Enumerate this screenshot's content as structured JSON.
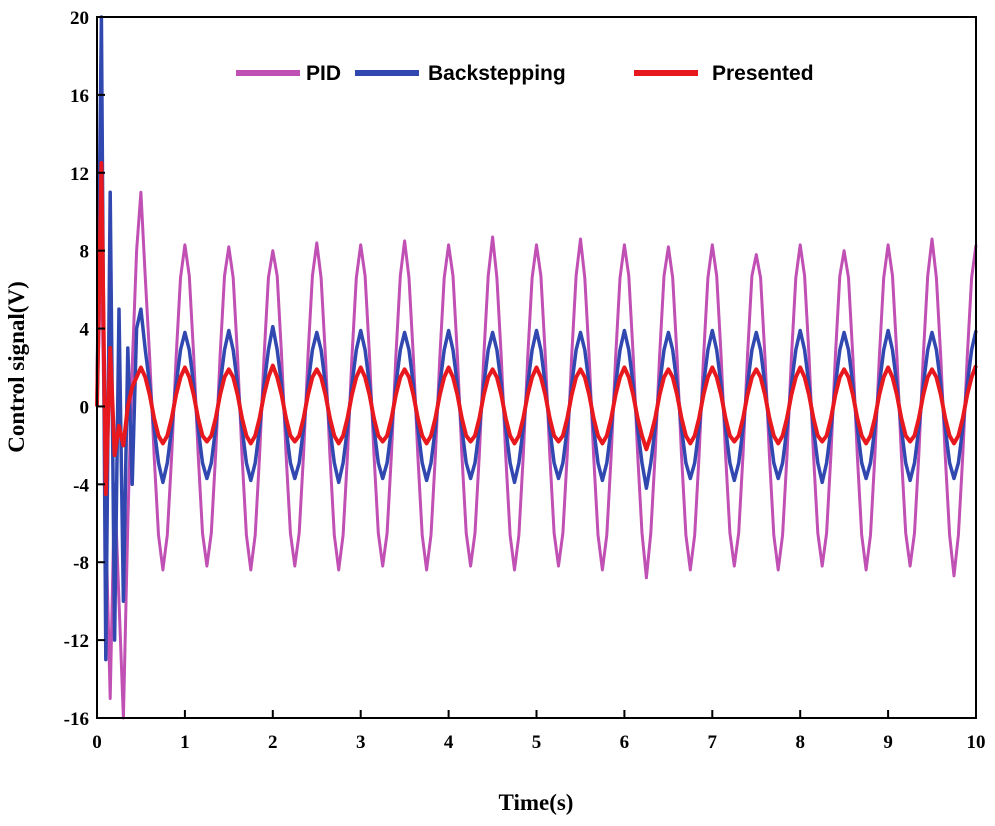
{
  "chart_data": {
    "type": "line",
    "xlabel": "Time(s)",
    "ylabel": "Control signal(V)",
    "xlim": [
      0,
      10
    ],
    "ylim": [
      -16,
      20
    ],
    "xticks": [
      "0",
      "1",
      "2",
      "3",
      "4",
      "5",
      "6",
      "7",
      "8",
      "9",
      "10"
    ],
    "yticks": [
      "-16",
      "-12",
      "-8",
      "-4",
      "0",
      "4",
      "8",
      "12",
      "16",
      "20"
    ],
    "grid": false,
    "legend_position": "top",
    "x": {
      "start": 0,
      "end": 10,
      "step": 0.05
    },
    "series": [
      {
        "name": "PID",
        "color": "#c050b4",
        "values": [
          0,
          8,
          -6,
          -15,
          -4,
          -10,
          -16,
          -6,
          2,
          8,
          11,
          6.6,
          2.5,
          -2.5,
          -6.6,
          -8.4,
          -6.6,
          -2.5,
          2.5,
          6.6,
          8.3,
          6.7,
          2.6,
          -2.4,
          -6.5,
          -8.2,
          -6.5,
          -2.4,
          2.6,
          6.7,
          8.2,
          6.6,
          2.5,
          -2.5,
          -6.6,
          -8.4,
          -6.6,
          -2.5,
          2.5,
          6.6,
          8.0,
          6.7,
          2.6,
          -2.4,
          -6.5,
          -8.2,
          -6.5,
          -2.4,
          2.6,
          6.7,
          8.4,
          6.6,
          2.5,
          -2.5,
          -6.6,
          -8.4,
          -6.6,
          -2.5,
          2.5,
          6.6,
          8.3,
          6.7,
          2.6,
          -2.4,
          -6.5,
          -8.2,
          -6.5,
          -2.4,
          2.6,
          6.7,
          8.5,
          6.6,
          2.5,
          -2.5,
          -6.6,
          -8.4,
          -6.6,
          -2.5,
          2.5,
          6.6,
          8.3,
          6.7,
          2.6,
          -2.4,
          -6.5,
          -8.2,
          -6.5,
          -2.4,
          2.6,
          6.7,
          8.7,
          6.6,
          2.5,
          -2.5,
          -6.6,
          -8.4,
          -6.6,
          -2.5,
          2.5,
          6.6,
          8.3,
          6.7,
          2.6,
          -2.4,
          -6.5,
          -8.2,
          -6.5,
          -2.4,
          2.6,
          6.7,
          8.6,
          6.6,
          2.5,
          -2.5,
          -6.6,
          -8.4,
          -6.6,
          -2.5,
          2.5,
          6.6,
          8.3,
          6.7,
          2.6,
          -2.4,
          -6.5,
          -8.8,
          -6.5,
          -2.4,
          2.6,
          6.7,
          8.2,
          6.6,
          2.5,
          -2.5,
          -6.6,
          -8.4,
          -6.6,
          -2.5,
          2.5,
          6.6,
          8.3,
          6.7,
          2.6,
          -2.4,
          -6.5,
          -8.2,
          -6.5,
          -2.4,
          2.6,
          6.7,
          7.8,
          6.6,
          2.5,
          -2.5,
          -6.6,
          -8.4,
          -6.6,
          -2.5,
          2.5,
          6.6,
          8.3,
          6.7,
          2.6,
          -2.4,
          -6.5,
          -8.2,
          -6.5,
          -2.4,
          2.6,
          6.7,
          8.0,
          6.6,
          2.5,
          -2.5,
          -6.6,
          -8.4,
          -6.6,
          -2.5,
          2.5,
          6.6,
          8.3,
          6.7,
          2.6,
          -2.4,
          -6.5,
          -8.2,
          -6.5,
          -2.4,
          2.6,
          6.7,
          8.6,
          6.6,
          2.5,
          -2.5,
          -6.6,
          -8.7,
          -6.6,
          -2.5,
          2.5,
          6.6,
          8.3
        ]
      },
      {
        "name": "Backstepping",
        "color": "#3048b0",
        "values": [
          0,
          20,
          -13,
          11,
          -12,
          5,
          -10,
          3,
          -4,
          4,
          5,
          2.9,
          1.1,
          -1.1,
          -2.9,
          -3.9,
          -2.9,
          -1.1,
          1.1,
          2.9,
          3.8,
          2.9,
          1.1,
          -1.1,
          -2.9,
          -3.7,
          -2.9,
          -1.1,
          1.1,
          2.9,
          3.9,
          2.9,
          1.1,
          -1.1,
          -2.9,
          -3.8,
          -2.9,
          -1.1,
          1.1,
          2.9,
          4.1,
          2.9,
          1.1,
          -1.1,
          -2.9,
          -3.7,
          -2.9,
          -1.1,
          1.1,
          2.9,
          3.8,
          2.9,
          1.1,
          -1.1,
          -2.9,
          -3.9,
          -2.9,
          -1.1,
          1.1,
          2.9,
          3.9,
          2.9,
          1.1,
          -1.1,
          -2.9,
          -3.7,
          -2.9,
          -1.1,
          1.1,
          2.9,
          3.8,
          2.9,
          1.1,
          -1.1,
          -2.9,
          -3.8,
          -2.9,
          -1.1,
          1.1,
          2.9,
          3.9,
          2.9,
          1.1,
          -1.1,
          -2.9,
          -3.7,
          -2.9,
          -1.1,
          1.1,
          2.9,
          3.8,
          2.9,
          1.1,
          -1.1,
          -2.9,
          -3.9,
          -2.9,
          -1.1,
          1.1,
          2.9,
          3.9,
          2.9,
          1.1,
          -1.1,
          -2.9,
          -3.7,
          -2.9,
          -1.1,
          1.1,
          2.9,
          3.8,
          2.9,
          1.1,
          -1.1,
          -2.9,
          -3.8,
          -2.9,
          -1.1,
          1.1,
          2.9,
          3.9,
          2.9,
          1.1,
          -1.1,
          -2.9,
          -4.2,
          -2.9,
          -1.1,
          1.1,
          2.9,
          3.8,
          2.9,
          1.1,
          -1.1,
          -2.9,
          -3.7,
          -2.9,
          -1.1,
          1.1,
          2.9,
          3.9,
          2.9,
          1.1,
          -1.1,
          -2.9,
          -3.8,
          -2.9,
          -1.1,
          1.1,
          2.9,
          3.8,
          2.9,
          1.1,
          -1.1,
          -2.9,
          -3.7,
          -2.9,
          -1.1,
          1.1,
          2.9,
          3.9,
          2.9,
          1.1,
          -1.1,
          -2.9,
          -3.9,
          -2.9,
          -1.1,
          1.1,
          2.9,
          3.8,
          2.9,
          1.1,
          -1.1,
          -2.9,
          -3.7,
          -2.9,
          -1.1,
          1.1,
          2.9,
          3.9,
          2.9,
          1.1,
          -1.1,
          -2.9,
          -3.8,
          -2.9,
          -1.1,
          1.1,
          2.9,
          3.8,
          2.9,
          1.1,
          -1.1,
          -2.9,
          -3.7,
          -2.9,
          -1.1,
          1.1,
          2.9,
          3.9
        ]
      },
      {
        "name": "Presented",
        "color": "#e8191e",
        "values": [
          0,
          12.5,
          -4.5,
          3,
          -2.5,
          -1,
          -2,
          0,
          1,
          1.5,
          2,
          1.5,
          0.6,
          -0.6,
          -1.5,
          -1.9,
          -1.5,
          -0.6,
          0.6,
          1.5,
          2.0,
          1.5,
          0.6,
          -0.6,
          -1.5,
          -1.8,
          -1.5,
          -0.6,
          0.6,
          1.5,
          1.9,
          1.5,
          0.6,
          -0.6,
          -1.5,
          -1.9,
          -1.5,
          -0.6,
          0.6,
          1.5,
          2.1,
          1.5,
          0.6,
          -0.6,
          -1.5,
          -1.8,
          -1.5,
          -0.6,
          0.6,
          1.5,
          1.9,
          1.5,
          0.6,
          -0.6,
          -1.5,
          -1.9,
          -1.5,
          -0.6,
          0.6,
          1.5,
          2.0,
          1.5,
          0.6,
          -0.6,
          -1.5,
          -1.8,
          -1.5,
          -0.6,
          0.6,
          1.5,
          1.9,
          1.5,
          0.6,
          -0.6,
          -1.5,
          -1.9,
          -1.5,
          -0.6,
          0.6,
          1.5,
          2.0,
          1.5,
          0.6,
          -0.6,
          -1.5,
          -1.8,
          -1.5,
          -0.6,
          0.6,
          1.5,
          1.9,
          1.5,
          0.6,
          -0.6,
          -1.5,
          -1.9,
          -1.5,
          -0.6,
          0.6,
          1.5,
          2.0,
          1.5,
          0.6,
          -0.6,
          -1.5,
          -1.8,
          -1.5,
          -0.6,
          0.6,
          1.5,
          1.9,
          1.5,
          0.6,
          -0.6,
          -1.5,
          -1.9,
          -1.5,
          -0.6,
          0.6,
          1.5,
          2.0,
          1.5,
          0.6,
          -0.6,
          -1.5,
          -2.2,
          -1.5,
          -0.6,
          0.6,
          1.5,
          1.9,
          1.5,
          0.6,
          -0.6,
          -1.5,
          -1.9,
          -1.5,
          -0.6,
          0.6,
          1.5,
          2.0,
          1.5,
          0.6,
          -0.6,
          -1.5,
          -1.8,
          -1.5,
          -0.6,
          0.6,
          1.5,
          1.9,
          1.5,
          0.6,
          -0.6,
          -1.5,
          -1.9,
          -1.5,
          -0.6,
          0.6,
          1.5,
          2.0,
          1.5,
          0.6,
          -0.6,
          -1.5,
          -1.8,
          -1.5,
          -0.6,
          0.6,
          1.5,
          1.9,
          1.5,
          0.6,
          -0.6,
          -1.5,
          -1.9,
          -1.5,
          -0.6,
          0.6,
          1.5,
          2.0,
          1.5,
          0.6,
          -0.6,
          -1.5,
          -1.8,
          -1.5,
          -0.6,
          0.6,
          1.5,
          1.9,
          1.5,
          0.6,
          -0.6,
          -1.5,
          -1.9,
          -1.5,
          -0.6,
          0.6,
          1.5,
          2.1
        ]
      }
    ]
  }
}
